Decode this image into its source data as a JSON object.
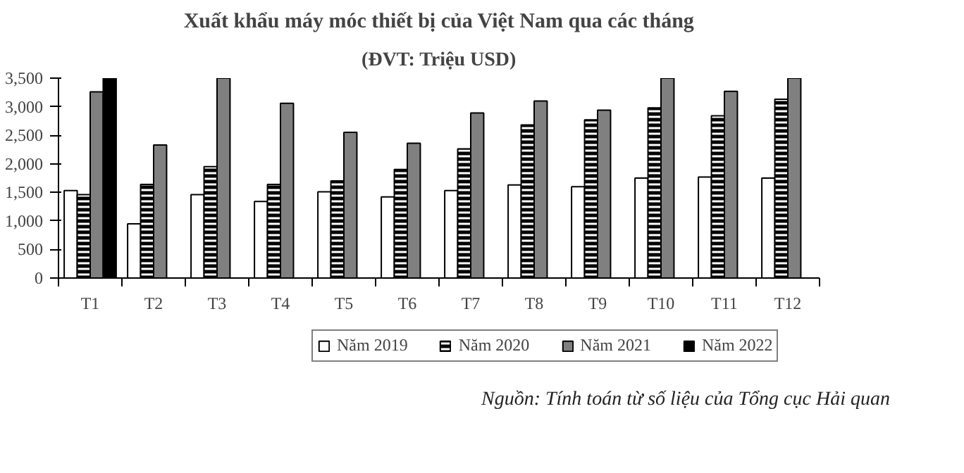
{
  "chart_data": {
    "type": "bar",
    "title": "Xuất khẩu máy móc thiết bị của Việt Nam qua các tháng",
    "subtitle": "(ĐVT: Triệu USD)",
    "categories": [
      "T1",
      "T2",
      "T3",
      "T4",
      "T5",
      "T6",
      "T7",
      "T8",
      "T9",
      "T10",
      "T11",
      "T12"
    ],
    "series": [
      {
        "name": "Năm 2019",
        "color": "#ffffff",
        "values": [
          1530,
          950,
          1460,
          1340,
          1510,
          1420,
          1530,
          1630,
          1600,
          1750,
          1770,
          1750
        ]
      },
      {
        "name": "Năm 2020",
        "color": "#000000",
        "values": [
          1460,
          1640,
          1950,
          1640,
          1700,
          1900,
          2260,
          2680,
          2770,
          2980,
          2840,
          3130
        ]
      },
      {
        "name": "Năm 2021",
        "color": "#808080",
        "values": [
          3260,
          2330,
          3500,
          3060,
          2550,
          2360,
          2890,
          3100,
          2940,
          3500,
          3270,
          3500
        ]
      },
      {
        "name": "Năm 2022",
        "color": "#000000",
        "values": [
          3500,
          null,
          null,
          null,
          null,
          null,
          null,
          null,
          null,
          null,
          null,
          null
        ]
      }
    ],
    "ylim": [
      0,
      3500
    ],
    "yticks": [
      {
        "value": 0,
        "label": "0"
      },
      {
        "value": 500,
        "label": "500"
      },
      {
        "value": 1000,
        "label": "1,000"
      },
      {
        "value": 1500,
        "label": "1,500"
      },
      {
        "value": 2000,
        "label": "2,000"
      },
      {
        "value": 2500,
        "label": "2,500"
      },
      {
        "value": 3000,
        "label": "3,000"
      },
      {
        "value": 3500,
        "label": "3,500"
      }
    ],
    "grid": false,
    "legend": "bottom",
    "annotations": [
      "Nguồn: Tính toán từ số liệu của Tổng cục Hải quan"
    ]
  }
}
